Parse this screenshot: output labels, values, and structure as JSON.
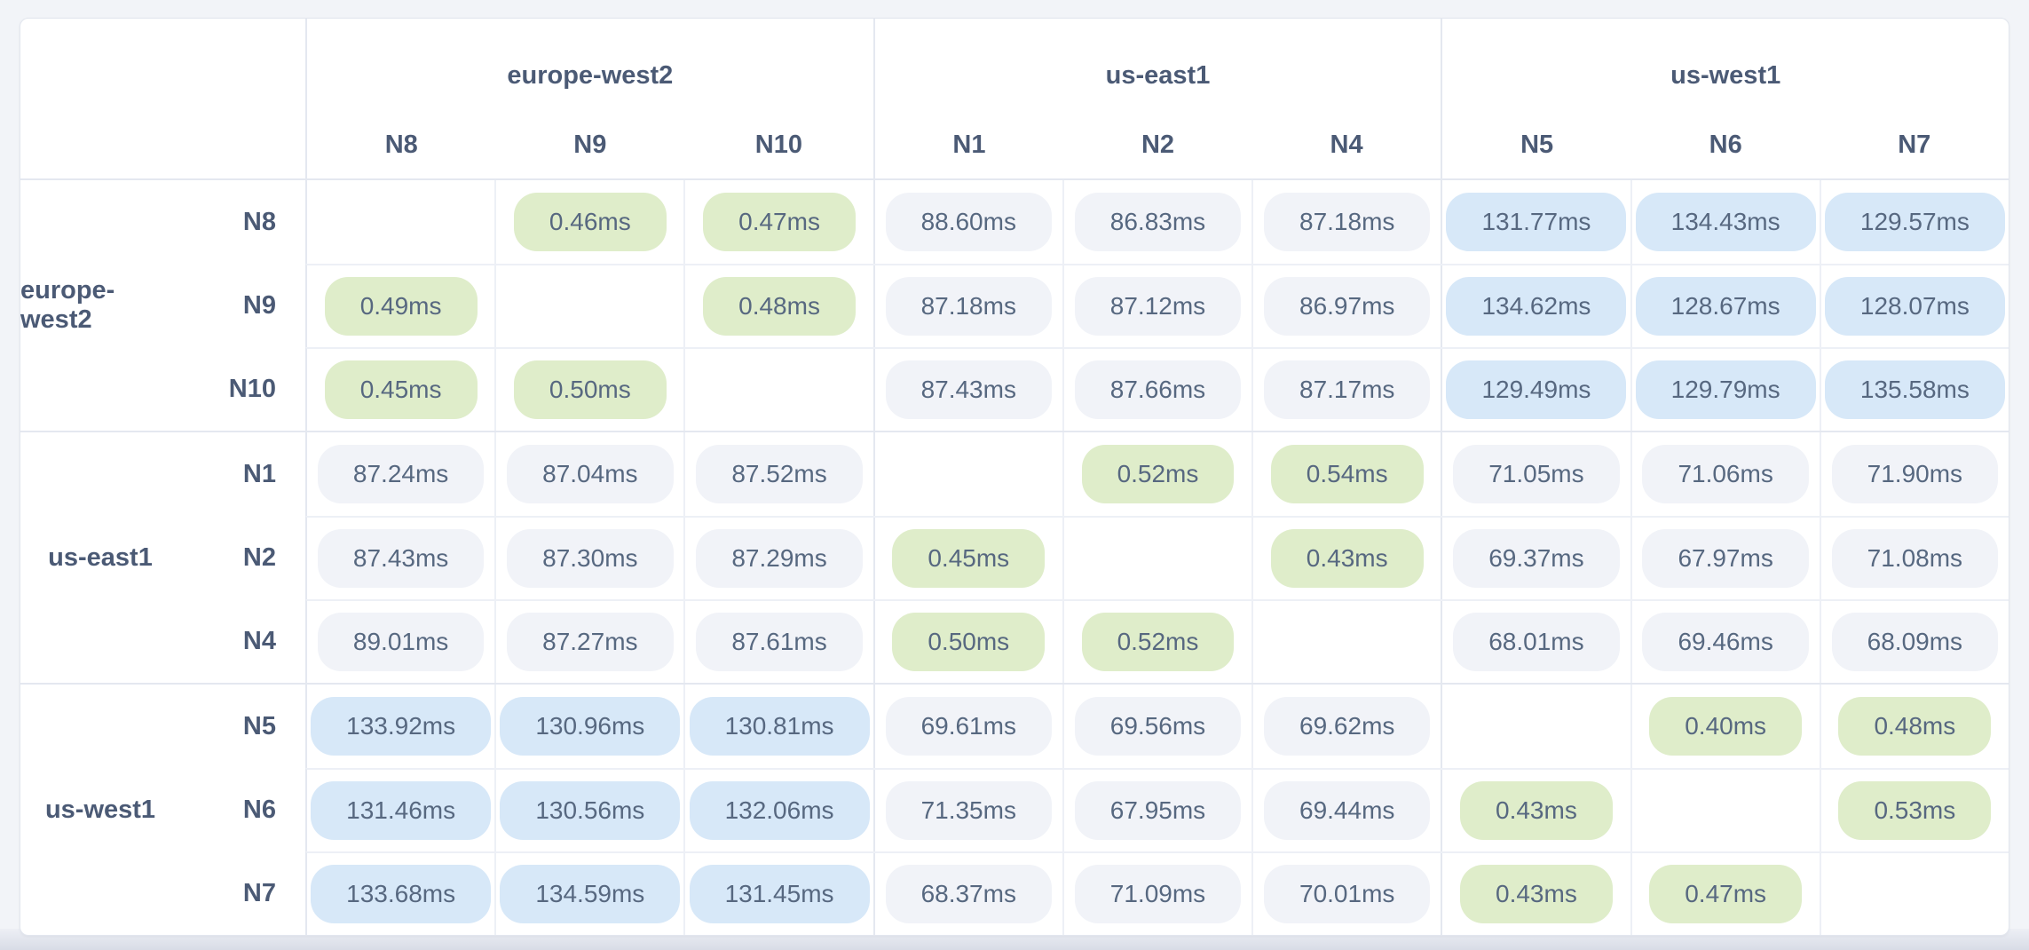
{
  "latency_matrix": {
    "unit": "ms",
    "column_groups": [
      {
        "region": "europe-west2",
        "nodes": [
          "N8",
          "N9",
          "N10"
        ]
      },
      {
        "region": "us-east1",
        "nodes": [
          "N1",
          "N2",
          "N4"
        ]
      },
      {
        "region": "us-west1",
        "nodes": [
          "N5",
          "N6",
          "N7"
        ]
      }
    ],
    "row_groups": [
      {
        "region": "europe-west2",
        "nodes": [
          "N8",
          "N9",
          "N10"
        ]
      },
      {
        "region": "us-east1",
        "nodes": [
          "N1",
          "N2",
          "N4"
        ]
      },
      {
        "region": "us-west1",
        "nodes": [
          "N5",
          "N6",
          "N7"
        ]
      }
    ],
    "rows": [
      {
        "node": "N8",
        "values": [
          null,
          0.46,
          0.47,
          88.6,
          86.83,
          87.18,
          131.77,
          134.43,
          129.57
        ]
      },
      {
        "node": "N9",
        "values": [
          0.49,
          null,
          0.48,
          87.18,
          87.12,
          86.97,
          134.62,
          128.67,
          128.07
        ]
      },
      {
        "node": "N10",
        "values": [
          0.45,
          0.5,
          null,
          87.43,
          87.66,
          87.17,
          129.49,
          129.79,
          135.58
        ]
      },
      {
        "node": "N1",
        "values": [
          87.24,
          87.04,
          87.52,
          null,
          0.52,
          0.54,
          71.05,
          71.06,
          71.9
        ]
      },
      {
        "node": "N2",
        "values": [
          87.43,
          87.3,
          87.29,
          0.45,
          null,
          0.43,
          69.37,
          67.97,
          71.08
        ]
      },
      {
        "node": "N4",
        "values": [
          89.01,
          87.27,
          87.61,
          0.5,
          0.52,
          null,
          68.01,
          69.46,
          68.09
        ]
      },
      {
        "node": "N5",
        "values": [
          133.92,
          130.96,
          130.81,
          69.61,
          69.56,
          69.62,
          null,
          0.4,
          0.48
        ]
      },
      {
        "node": "N6",
        "values": [
          131.46,
          130.56,
          132.06,
          71.35,
          67.95,
          69.44,
          0.43,
          null,
          0.53
        ]
      },
      {
        "node": "N7",
        "values": [
          133.68,
          134.59,
          131.45,
          68.37,
          71.09,
          70.01,
          0.43,
          0.47,
          null
        ]
      }
    ],
    "tiers": {
      "low_below_ms": 1,
      "mid_below_ms": 100
    }
  },
  "colors": {
    "page_bg": "#f2f4f8",
    "card_bg": "#ffffff",
    "card_border": "#e2e6ee",
    "grid_strong": "#e4e8f0",
    "grid_light": "#edf0f6",
    "header_text": "#4b5a75",
    "cell_text": "#576880",
    "tier_low_bg": "#dfedca",
    "tier_mid_bg": "#f1f3f8",
    "tier_high_bg": "#d7e8f8"
  }
}
